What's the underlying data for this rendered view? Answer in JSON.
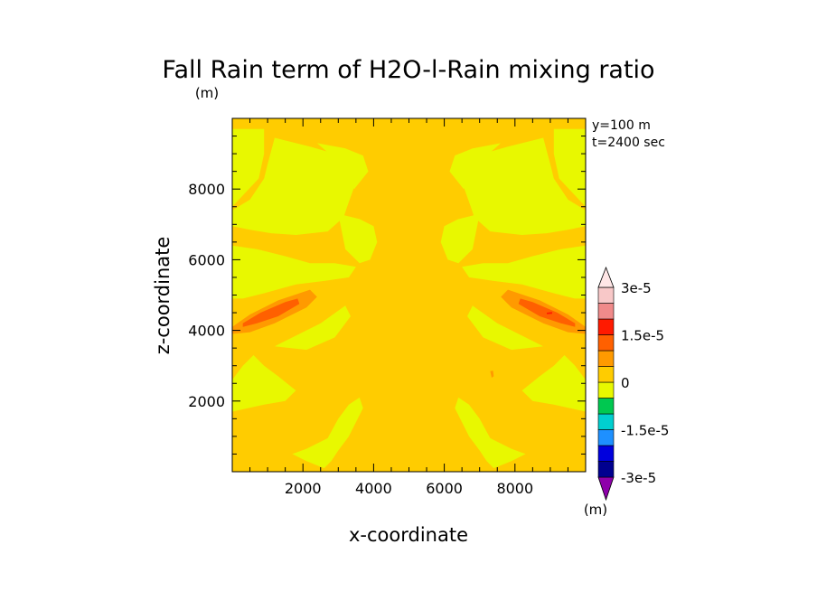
{
  "chart_data": {
    "type": "heatmap",
    "title": "Fall Rain term of H2O-l-Rain mixing ratio",
    "title_unit": "(m)",
    "xlabel": "x-coordinate",
    "ylabel": "z-coordinate",
    "xlim": [
      0,
      10000
    ],
    "ylim": [
      0,
      10000
    ],
    "x_ticks": [
      2000,
      4000,
      6000,
      8000
    ],
    "y_ticks": [
      2000,
      4000,
      6000,
      8000
    ],
    "x_tick_labels": [
      "2000",
      "4000",
      "6000",
      "8000"
    ],
    "y_tick_labels": [
      "2000",
      "4000",
      "6000",
      "8000"
    ],
    "annotations": [
      "y=100 m",
      "t=2400 sec"
    ],
    "colorbar": {
      "unit": "(m)",
      "labels": [
        "3e-5",
        "1.5e-5",
        "0",
        "-1.5e-5",
        "-3e-5"
      ],
      "label_values": [
        3e-05,
        1.5e-05,
        0,
        -1.5e-05,
        -3e-05
      ],
      "levels_low_to_high": [
        -3e-05,
        -2.5e-05,
        -2e-05,
        -1.5e-05,
        -1e-05,
        -5e-06,
        0,
        5e-06,
        1e-05,
        1.5e-05,
        2e-05,
        2.5e-05,
        3e-05
      ],
      "colors_low_to_high": [
        "#8e00aa",
        "#00008f",
        "#0000dd",
        "#1e90ff",
        "#00cfcf",
        "#00c850",
        "#e8f800",
        "#ffcc00",
        "#ff9a00",
        "#ff6000",
        "#ff1a00",
        "#f08a8a",
        "#f8c8c8",
        "#ffe6e6"
      ],
      "colors": {
        "background_level": "#ffcc00",
        "low_positive": "#e8f800",
        "mid_positive": "#ff9a00",
        "high_positive": "#ff6000",
        "peak": "#ff1a00"
      }
    },
    "regions": [
      {
        "level": "0 to 5e-6",
        "points": [
          [
            0,
            7500
          ],
          [
            750,
            8300
          ],
          [
            900,
            9000
          ],
          [
            900,
            9700
          ],
          [
            0,
            9700
          ]
        ]
      },
      {
        "level": "0 to 5e-6",
        "points": [
          [
            10000,
            7500
          ],
          [
            9250,
            8300
          ],
          [
            9100,
            9000
          ],
          [
            9100,
            9700
          ],
          [
            10000,
            9700
          ]
        ]
      },
      {
        "level": "0 to 5e-6",
        "points": [
          [
            1200,
            9450
          ],
          [
            2200,
            9200
          ],
          [
            2900,
            9000
          ],
          [
            3350,
            8550
          ],
          [
            3500,
            8200
          ],
          [
            3250,
            7500
          ],
          [
            3150,
            7200
          ],
          [
            2700,
            6800
          ],
          [
            1800,
            6700
          ],
          [
            1100,
            6750
          ],
          [
            500,
            6850
          ],
          [
            0,
            6950
          ],
          [
            0,
            7400
          ],
          [
            500,
            7700
          ],
          [
            900,
            8300
          ],
          [
            1000,
            8700
          ]
        ]
      },
      {
        "level": "0 to 5e-6",
        "points": [
          [
            8800,
            9450
          ],
          [
            7800,
            9200
          ],
          [
            7100,
            9000
          ],
          [
            6650,
            8550
          ],
          [
            6500,
            8200
          ],
          [
            6750,
            7500
          ],
          [
            6850,
            7200
          ],
          [
            7300,
            6800
          ],
          [
            8200,
            6700
          ],
          [
            8900,
            6750
          ],
          [
            9500,
            6850
          ],
          [
            10000,
            6950
          ],
          [
            10000,
            7400
          ],
          [
            9500,
            7700
          ],
          [
            9100,
            8300
          ],
          [
            9000,
            8700
          ]
        ]
      },
      {
        "level": "0 to 5e-6",
        "points": [
          [
            2400,
            9300
          ],
          [
            3200,
            9150
          ],
          [
            3700,
            8950
          ],
          [
            3850,
            8500
          ],
          [
            3450,
            8000
          ],
          [
            3200,
            8600
          ]
        ]
      },
      {
        "level": "0 to 5e-6",
        "points": [
          [
            7600,
            9300
          ],
          [
            6800,
            9150
          ],
          [
            6300,
            8950
          ],
          [
            6150,
            8500
          ],
          [
            6550,
            8000
          ],
          [
            6800,
            8600
          ]
        ]
      },
      {
        "level": "0 to 5e-6",
        "points": [
          [
            3000,
            7300
          ],
          [
            3600,
            7150
          ],
          [
            4000,
            6950
          ],
          [
            4100,
            6500
          ],
          [
            3900,
            6000
          ],
          [
            3600,
            5900
          ],
          [
            3200,
            6300
          ]
        ]
      },
      {
        "level": "0 to 5e-6",
        "points": [
          [
            7000,
            7300
          ],
          [
            6400,
            7150
          ],
          [
            6000,
            6950
          ],
          [
            5900,
            6500
          ],
          [
            6100,
            6000
          ],
          [
            6400,
            5900
          ],
          [
            6800,
            6300
          ]
        ]
      },
      {
        "level": "0 to 5e-6",
        "points": [
          [
            0,
            6400
          ],
          [
            700,
            6300
          ],
          [
            1500,
            6100
          ],
          [
            2200,
            5900
          ],
          [
            2900,
            5900
          ],
          [
            3500,
            5800
          ],
          [
            3300,
            5500
          ],
          [
            2600,
            5400
          ],
          [
            1800,
            5300
          ],
          [
            900,
            5050
          ],
          [
            300,
            4900
          ],
          [
            0,
            4900
          ]
        ]
      },
      {
        "level": "0 to 5e-6",
        "points": [
          [
            10000,
            6400
          ],
          [
            9300,
            6300
          ],
          [
            8500,
            6100
          ],
          [
            7800,
            5900
          ],
          [
            7100,
            5900
          ],
          [
            6500,
            5800
          ],
          [
            6700,
            5500
          ],
          [
            7400,
            5400
          ],
          [
            8200,
            5300
          ],
          [
            9100,
            5050
          ],
          [
            9700,
            4900
          ],
          [
            10000,
            4900
          ]
        ]
      },
      {
        "level": "0 to 5e-6",
        "points": [
          [
            1200,
            3550
          ],
          [
            1700,
            3800
          ],
          [
            2500,
            4200
          ],
          [
            3200,
            4700
          ],
          [
            3350,
            4400
          ],
          [
            2900,
            3800
          ],
          [
            2100,
            3450
          ]
        ]
      },
      {
        "level": "0 to 5e-6",
        "points": [
          [
            8800,
            3550
          ],
          [
            8300,
            3800
          ],
          [
            7500,
            4200
          ],
          [
            6800,
            4700
          ],
          [
            6650,
            4400
          ],
          [
            7100,
            3800
          ],
          [
            7900,
            3450
          ]
        ]
      },
      {
        "level": "0 to 5e-6",
        "points": [
          [
            0,
            1700
          ],
          [
            900,
            1900
          ],
          [
            1500,
            2000
          ],
          [
            1800,
            2300
          ],
          [
            1300,
            2700
          ],
          [
            900,
            3000
          ],
          [
            600,
            3300
          ],
          [
            300,
            3000
          ],
          [
            0,
            2600
          ]
        ]
      },
      {
        "level": "0 to 5e-6",
        "points": [
          [
            10000,
            1700
          ],
          [
            9100,
            1900
          ],
          [
            8500,
            2000
          ],
          [
            8200,
            2300
          ],
          [
            8700,
            2700
          ],
          [
            9100,
            3000
          ],
          [
            9400,
            3300
          ],
          [
            9700,
            3000
          ],
          [
            10000,
            2600
          ]
        ]
      },
      {
        "level": "0 to 5e-6",
        "points": [
          [
            1700,
            500
          ],
          [
            2100,
            650
          ],
          [
            2700,
            950
          ],
          [
            3000,
            1500
          ],
          [
            3300,
            1900
          ],
          [
            3600,
            2100
          ],
          [
            3700,
            1800
          ],
          [
            3300,
            1000
          ],
          [
            3000,
            600
          ],
          [
            2800,
            300
          ],
          [
            2600,
            100
          ],
          [
            2100,
            300
          ]
        ]
      },
      {
        "level": "0 to 5e-6",
        "points": [
          [
            8300,
            500
          ],
          [
            7900,
            650
          ],
          [
            7300,
            950
          ],
          [
            7000,
            1500
          ],
          [
            6700,
            1900
          ],
          [
            6400,
            2100
          ],
          [
            6300,
            1800
          ],
          [
            6700,
            1000
          ],
          [
            7000,
            600
          ],
          [
            7200,
            300
          ],
          [
            7400,
            100
          ],
          [
            7900,
            300
          ]
        ]
      },
      {
        "level": "5e-6 to 1e-5",
        "points": [
          [
            0,
            4100
          ],
          [
            500,
            4450
          ],
          [
            1300,
            4850
          ],
          [
            2200,
            5150
          ],
          [
            2400,
            4950
          ],
          [
            2100,
            4650
          ],
          [
            1200,
            4200
          ],
          [
            500,
            3950
          ],
          [
            0,
            3900
          ]
        ]
      },
      {
        "level": "5e-6 to 1e-5",
        "points": [
          [
            10000,
            4100
          ],
          [
            9500,
            4450
          ],
          [
            8700,
            4850
          ],
          [
            7800,
            5150
          ],
          [
            7600,
            4950
          ],
          [
            7900,
            4650
          ],
          [
            8800,
            4200
          ],
          [
            9500,
            3950
          ],
          [
            10000,
            3900
          ]
        ]
      },
      {
        "level": "1e-5 to 1.5e-5",
        "points": [
          [
            300,
            4200
          ],
          [
            800,
            4500
          ],
          [
            1500,
            4800
          ],
          [
            1850,
            4900
          ],
          [
            1900,
            4750
          ],
          [
            1300,
            4400
          ],
          [
            700,
            4200
          ],
          [
            300,
            4100
          ]
        ]
      },
      {
        "level": "1e-5 to 1.5e-5",
        "points": [
          [
            9700,
            4200
          ],
          [
            9200,
            4500
          ],
          [
            8500,
            4800
          ],
          [
            8150,
            4900
          ],
          [
            8100,
            4750
          ],
          [
            8700,
            4400
          ],
          [
            9300,
            4200
          ],
          [
            9700,
            4100
          ]
        ]
      },
      {
        "level": "1.5e-5 to 2e-5",
        "points": [
          [
            8900,
            4500
          ],
          [
            9050,
            4520
          ],
          [
            9050,
            4470
          ],
          [
            8900,
            4460
          ]
        ]
      },
      {
        "level": "5e-6 to 1e-5",
        "points": [
          [
            7300,
            2850
          ],
          [
            7380,
            2860
          ],
          [
            7400,
            2700
          ],
          [
            7340,
            2660
          ]
        ]
      }
    ]
  }
}
